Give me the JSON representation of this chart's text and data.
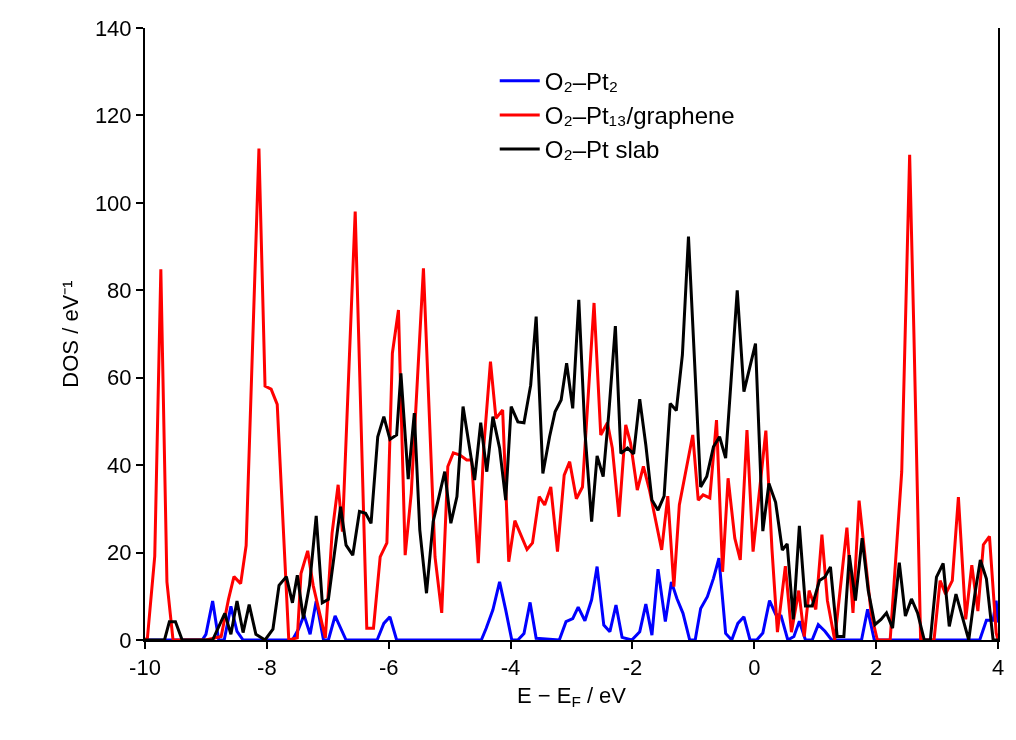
{
  "chart_data": {
    "type": "line",
    "xlabel": "E − E$_{F}$ / eV",
    "ylabel": "DOS / eV⁻¹",
    "xlim": [
      -10,
      4
    ],
    "xticks": [
      -10,
      -8,
      -6,
      -4,
      -2,
      0,
      2,
      4
    ],
    "ylim": [
      0,
      140
    ],
    "yticks": [
      0,
      20,
      40,
      60,
      80,
      100,
      120,
      140
    ],
    "legend": "top",
    "marker": "none",
    "line_style": "solid",
    "series": [
      {
        "name": "O₂–Pt₂",
        "color": "#0000ff",
        "x": [
          -10,
          -9.06,
          -9.0,
          -8.89,
          -8.79,
          -8.7,
          -8.59,
          -8.49,
          -8.39,
          -7.58,
          -7.48,
          -7.39,
          -7.29,
          -7.19,
          -7.07,
          -6.99,
          -6.88,
          -6.7,
          -6.19,
          -6.08,
          -5.98,
          -5.87,
          -4.48,
          -4.4,
          -4.29,
          -4.18,
          -4.08,
          -3.98,
          -3.88,
          -3.78,
          -3.68,
          -3.58,
          -3.2,
          -3.09,
          -2.98,
          -2.89,
          -2.78,
          -2.67,
          -2.58,
          -2.47,
          -2.37,
          -2.27,
          -2.17,
          -2.01,
          -1.88,
          -1.78,
          -1.68,
          -1.58,
          -1.46,
          -1.36,
          -1.27,
          -1.17,
          -1.06,
          -0.97,
          -0.88,
          -0.77,
          -0.67,
          -0.58,
          -0.47,
          -0.37,
          -0.27,
          -0.17,
          -0.07,
          0.04,
          0.14,
          0.25,
          0.35,
          0.44,
          0.55,
          0.65,
          0.74,
          0.84,
          0.95,
          1.05,
          1.16,
          1.27,
          1.76,
          1.86,
          1.97,
          3.7,
          3.81,
          3.92,
          3.97,
          4.0
        ],
        "values": [
          0,
          0,
          1.3,
          8.9,
          0,
          0,
          7.7,
          2,
          0,
          0,
          2.5,
          5.7,
          1.3,
          8.9,
          0,
          0,
          5.5,
          0,
          0,
          3.8,
          5.3,
          0,
          0,
          2.7,
          6.9,
          13.3,
          6.9,
          0,
          0,
          1.5,
          8.6,
          0.4,
          0,
          4.2,
          4.9,
          7.5,
          4.4,
          9.2,
          16.8,
          3.4,
          1.9,
          8,
          0.6,
          0,
          1.9,
          8.2,
          1.1,
          16.2,
          4.2,
          13.3,
          9.5,
          6.1,
          0,
          0,
          7.2,
          9.9,
          14.1,
          18.7,
          1.5,
          0,
          3.8,
          5.3,
          0,
          0,
          1.6,
          9,
          5.9,
          5.5,
          0,
          0.8,
          4.3,
          0,
          0,
          3.5,
          2,
          0,
          0,
          7,
          0,
          0,
          4.5,
          4.5,
          9,
          4
        ]
      },
      {
        "name": "O₂–Pt₁₃/graphene",
        "color": "#ff0000",
        "x": [
          -10,
          -9.96,
          -9.84,
          -9.74,
          -9.64,
          -9.54,
          -9.0,
          -8.75,
          -8.63,
          -8.54,
          -8.43,
          -8.34,
          -8.13,
          -8.03,
          -7.93,
          -7.83,
          -7.64,
          -7.5,
          -7.44,
          -7.33,
          -7.24,
          -7.04,
          -6.93,
          -6.83,
          -6.76,
          -6.55,
          -6.36,
          -6.25,
          -6.14,
          -6.03,
          -5.94,
          -5.84,
          -5.73,
          -5.63,
          -5.43,
          -5.24,
          -5.13,
          -5.03,
          -4.94,
          -4.83,
          -4.72,
          -4.64,
          -4.53,
          -4.44,
          -4.33,
          -4.24,
          -4.13,
          -4.03,
          -3.93,
          -3.83,
          -3.73,
          -3.64,
          -3.53,
          -3.44,
          -3.34,
          -3.23,
          -3.12,
          -3.03,
          -2.92,
          -2.82,
          -2.63,
          -2.52,
          -2.41,
          -2.33,
          -2.22,
          -2.11,
          -2.03,
          -1.92,
          -1.82,
          -1.72,
          -1.52,
          -1.42,
          -1.32,
          -1.23,
          -1.01,
          -0.92,
          -0.84,
          -0.73,
          -0.62,
          -0.52,
          -0.43,
          -0.32,
          -0.23,
          -0.12,
          -0.02,
          0.19,
          0.29,
          0.38,
          0.51,
          0.61,
          0.73,
          0.82,
          0.9,
          1.01,
          1.11,
          1.2,
          1.32,
          1.52,
          1.62,
          1.72,
          1.83,
          1.92,
          2.02,
          2.23,
          2.42,
          2.55,
          2.62,
          2.73,
          2.84,
          2.95,
          3.05,
          3.14,
          3.25,
          3.35,
          3.47,
          3.57,
          3.67,
          3.76,
          3.86,
          3.97,
          4.0
        ],
        "values": [
          0,
          0.5,
          19.2,
          84.8,
          13.3,
          0,
          0,
          0.8,
          9.3,
          14.5,
          12.9,
          21.6,
          112.4,
          58.1,
          57.4,
          53.9,
          0,
          0.5,
          15.2,
          20.4,
          12.5,
          0.5,
          24.4,
          35.5,
          24.8,
          98,
          2.7,
          2.7,
          19,
          22.2,
          65.6,
          75.5,
          19.4,
          33.6,
          85,
          19,
          6.2,
          39.7,
          42.8,
          42.3,
          41.2,
          41.2,
          17.6,
          44.2,
          63.7,
          50.7,
          52.6,
          17.9,
          27.3,
          24,
          20.7,
          22.2,
          32.8,
          30.9,
          35,
          20.2,
          37.7,
          40.8,
          32.3,
          35,
          77.1,
          46.9,
          49.7,
          43.9,
          28.2,
          49.2,
          45,
          34.3,
          39.7,
          34.3,
          20.6,
          32.9,
          12.2,
          30.9,
          46.9,
          32,
          33.2,
          32.5,
          50.3,
          15.6,
          37,
          23.3,
          18.3,
          48,
          20.2,
          47.9,
          20.8,
          1.8,
          16.9,
          1.8,
          11.3,
          0.8,
          11.3,
          7,
          24.1,
          9,
          0,
          25.7,
          6.2,
          31.9,
          17.5,
          5.9,
          0,
          0,
          38.5,
          111,
          70,
          0,
          0,
          0,
          13.6,
          10.5,
          13.6,
          32.7,
          4.7,
          17.1,
          6.6,
          21.8,
          23.7,
          1.6,
          0
        ]
      },
      {
        "name": "O₂–Pt slab",
        "color": "#000000",
        "x": [
          -10,
          -9.68,
          -9.6,
          -9.5,
          -9.39,
          -8.89,
          -8.69,
          -8.59,
          -8.49,
          -8.39,
          -8.29,
          -8.18,
          -8.03,
          -7.9,
          -7.8,
          -7.68,
          -7.58,
          -7.5,
          -7.4,
          -7.3,
          -7.19,
          -7.09,
          -6.99,
          -6.79,
          -6.7,
          -6.59,
          -6.48,
          -6.38,
          -6.29,
          -6.18,
          -6.08,
          -5.98,
          -5.87,
          -5.8,
          -5.68,
          -5.58,
          -5.49,
          -5.38,
          -5.27,
          -5.08,
          -4.98,
          -4.88,
          -4.78,
          -4.59,
          -4.49,
          -4.39,
          -4.29,
          -4.18,
          -4.08,
          -3.99,
          -3.88,
          -3.78,
          -3.67,
          -3.58,
          -3.47,
          -3.36,
          -3.27,
          -3.17,
          -3.08,
          -2.98,
          -2.88,
          -2.78,
          -2.67,
          -2.58,
          -2.48,
          -2.39,
          -2.28,
          -2.19,
          -2.08,
          -1.98,
          -1.88,
          -1.78,
          -1.68,
          -1.58,
          -1.48,
          -1.38,
          -1.28,
          -1.18,
          -1.08,
          -0.88,
          -0.78,
          -0.67,
          -0.57,
          -0.47,
          -0.38,
          -0.28,
          -0.17,
          0.02,
          0.14,
          0.24,
          0.35,
          0.46,
          0.54,
          0.64,
          0.74,
          0.84,
          0.95,
          1.07,
          1.16,
          1.25,
          1.36,
          1.47,
          1.56,
          1.66,
          1.77,
          1.87,
          1.98,
          2.08,
          2.17,
          2.27,
          2.38,
          2.48,
          2.58,
          2.68,
          2.79,
          2.89,
          2.99,
          3.1,
          3.2,
          3.31,
          3.41,
          3.52,
          3.62,
          3.71,
          3.81,
          3.92,
          4.0
        ],
        "values": [
          0,
          0,
          4.2,
          4.2,
          0,
          0,
          6.1,
          1.3,
          8.9,
          1.7,
          8.1,
          1.3,
          0,
          2.5,
          12.5,
          14.5,
          8.5,
          14.8,
          4.9,
          12.5,
          28.4,
          8.5,
          9.3,
          30.5,
          21.7,
          19.4,
          29.4,
          29,
          26.7,
          46.5,
          51.1,
          45.9,
          46.9,
          61,
          36.8,
          51.9,
          25.2,
          10.7,
          27.1,
          38.5,
          26.7,
          32.8,
          53.4,
          36.6,
          49.7,
          38.5,
          51.1,
          43.9,
          32,
          53.4,
          49.9,
          49.7,
          58.3,
          74,
          38.1,
          46.5,
          52.2,
          54.9,
          63.3,
          53,
          77.8,
          47.7,
          27.1,
          42.1,
          37.4,
          51.5,
          71.8,
          42.7,
          43.9,
          42.6,
          55.1,
          44.6,
          32,
          29.7,
          32.9,
          54.1,
          52.5,
          65.2,
          92.3,
          35,
          37.4,
          44.2,
          46.5,
          41.6,
          59.5,
          80,
          56.8,
          67.8,
          24.9,
          35.8,
          31.5,
          20.6,
          22,
          4.7,
          26.1,
          7.8,
          7.8,
          13.6,
          14.4,
          16.7,
          0.8,
          0.8,
          19.4,
          9,
          23.3,
          11.3,
          3.5,
          4.7,
          6.2,
          2.7,
          17.7,
          5.5,
          9.4,
          6.2,
          0,
          0,
          14.4,
          17.5,
          3.1,
          10.5,
          5.5,
          0,
          10.5,
          18.3,
          14,
          0,
          0
        ]
      }
    ]
  }
}
